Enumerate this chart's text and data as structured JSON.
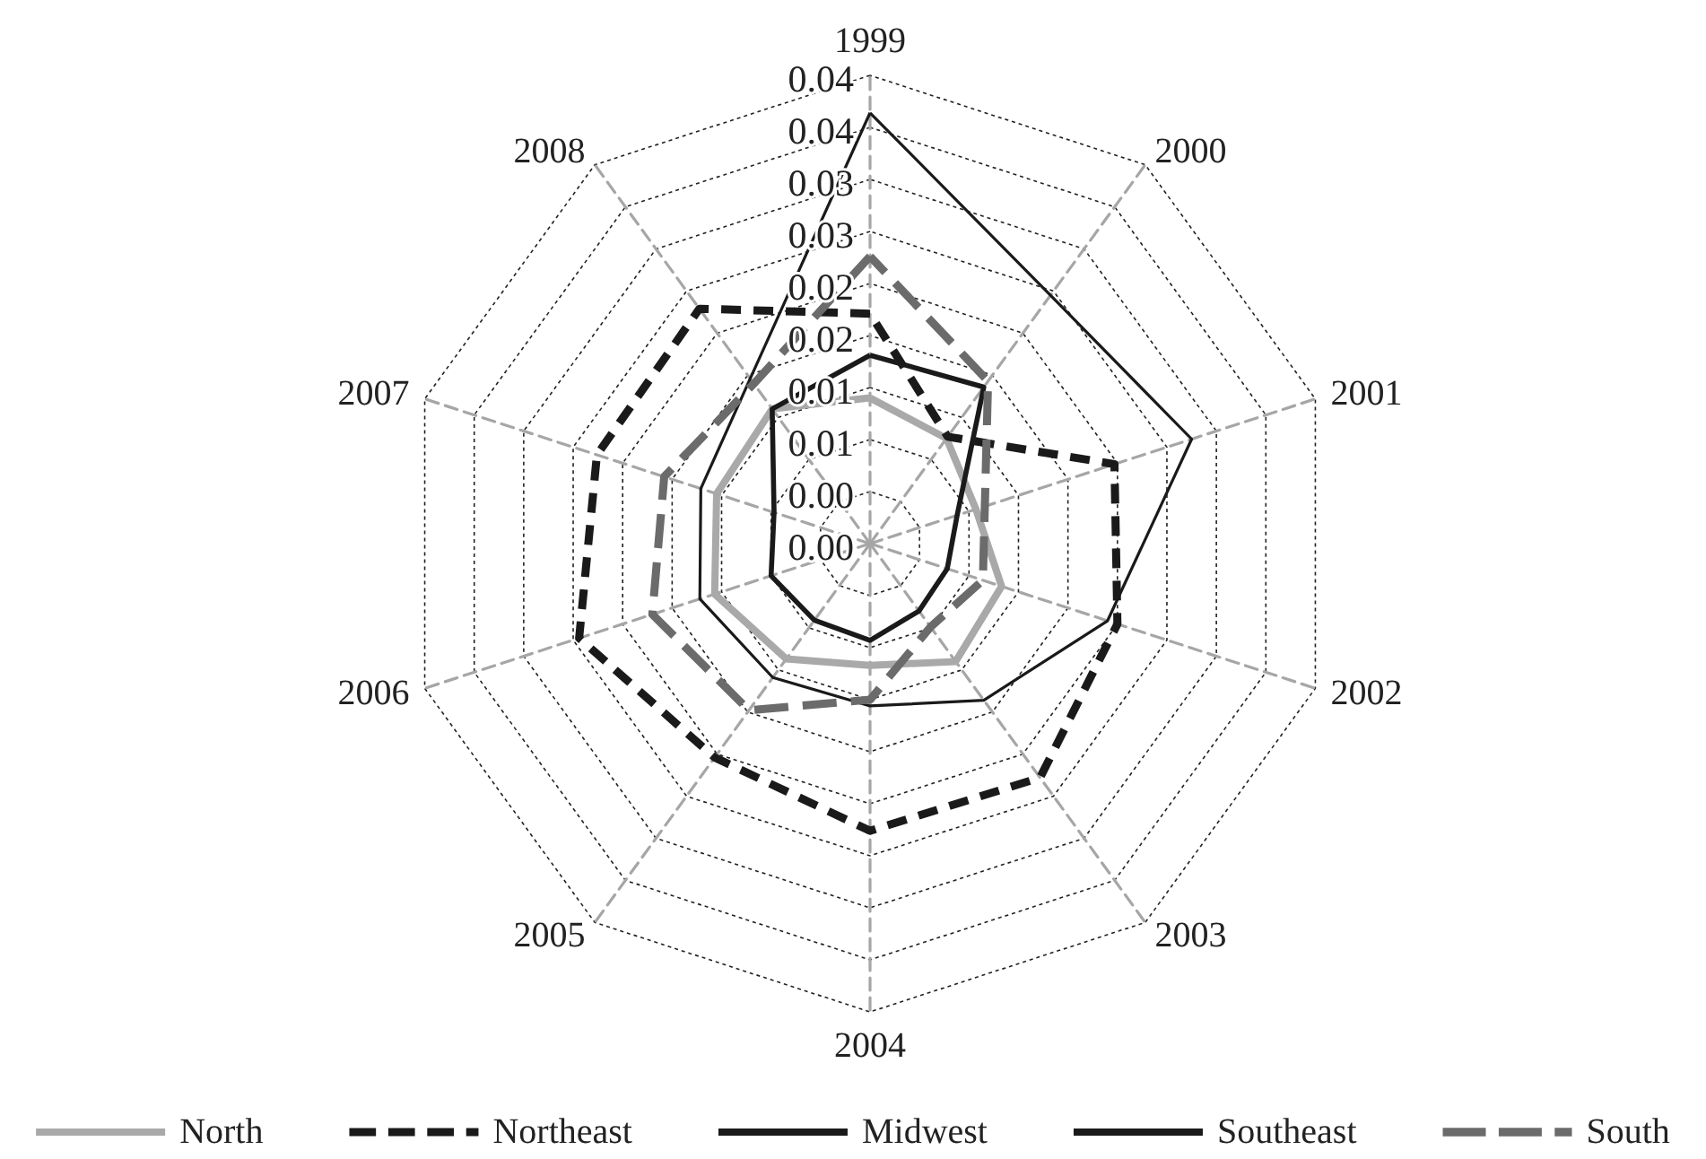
{
  "chart_data": {
    "type": "radar",
    "categories": [
      "1999",
      "2000",
      "2001",
      "2002",
      "2003",
      "2004",
      "2005",
      "2006",
      "2007",
      "2008"
    ],
    "series": [
      {
        "name": "North",
        "color": "#a9a9a9",
        "line_style": "solid",
        "values": [
          0.014,
          0.0125,
          0.0107,
          0.0133,
          0.014,
          0.0117,
          0.0137,
          0.0157,
          0.0155,
          0.016
        ]
      },
      {
        "name": "Northeast",
        "color": "#1a1a1a",
        "line_style": "dashed",
        "values": [
          0.0221,
          0.0127,
          0.0247,
          0.025,
          0.0278,
          0.0276,
          0.0254,
          0.0294,
          0.0276,
          0.0279
        ]
      },
      {
        "name": "Midwest",
        "color": "#1a1a1a",
        "line_style": "solid",
        "values": [
          0.0414,
          0.0295,
          0.0325,
          0.024,
          0.0186,
          0.0156,
          0.0159,
          0.0172,
          0.0171,
          0.0196
        ]
      },
      {
        "name": "Southeast",
        "color": "#1a1a1a",
        "line_style": "solid",
        "values": [
          0.0181,
          0.0186,
          0.0088,
          0.0078,
          0.008,
          0.0093,
          0.0091,
          0.01,
          0.0097,
          0.016
        ]
      },
      {
        "name": "South",
        "color": "#6b6b6b",
        "line_style": "dashed",
        "values": [
          0.0276,
          0.0193,
          0.0116,
          0.0114,
          0.0099,
          0.015,
          0.0198,
          0.022,
          0.0208,
          0.019
        ]
      }
    ],
    "ylim": [
      0,
      0.045
    ],
    "yticks": [
      {
        "value": 0,
        "label": "0.00"
      },
      {
        "value": 0.005,
        "label": "0.00"
      },
      0.01,
      {
        "value": 0.015,
        "label": "0.01"
      },
      0.02,
      {
        "value": 0.025,
        "label": "0.02"
      },
      0.03,
      {
        "value": 0.035,
        "label": "0.03"
      },
      0.04,
      {
        "value": 0.045,
        "label": "0.04"
      }
    ],
    "grid": true,
    "legend": "bottom",
    "marker": "none"
  }
}
